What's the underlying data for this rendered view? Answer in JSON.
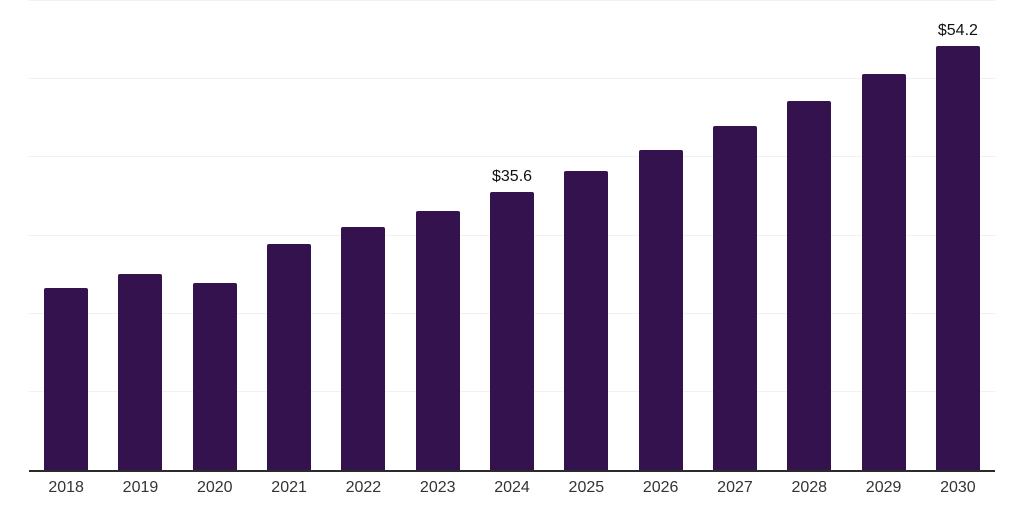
{
  "chart_data": {
    "type": "bar",
    "title": "",
    "xlabel": "",
    "ylabel": "",
    "categories": [
      "2018",
      "2019",
      "2020",
      "2021",
      "2022",
      "2023",
      "2024",
      "2025",
      "2026",
      "2027",
      "2028",
      "2029",
      "2030"
    ],
    "values": [
      23.3,
      25.1,
      23.9,
      28.9,
      31.1,
      33.2,
      35.6,
      38.2,
      40.9,
      44.0,
      47.2,
      50.7,
      54.2
    ],
    "data_labels": [
      "",
      "",
      "",
      "",
      "",
      "",
      "$35.6",
      "",
      "",
      "",
      "",
      "",
      "$54.2"
    ],
    "ylim": [
      0,
      60
    ],
    "gridline_step": 10,
    "grid": "horizontal-only",
    "legend_position": "none",
    "y_axis_tick_labels_visible": false,
    "colors": {
      "bar": "#33124d",
      "gridline": "#f1f1f1",
      "axis_line": "#2b2b2b",
      "x_tick_text": "#333333",
      "data_label_text": "#111111",
      "background": "#ffffff"
    }
  }
}
